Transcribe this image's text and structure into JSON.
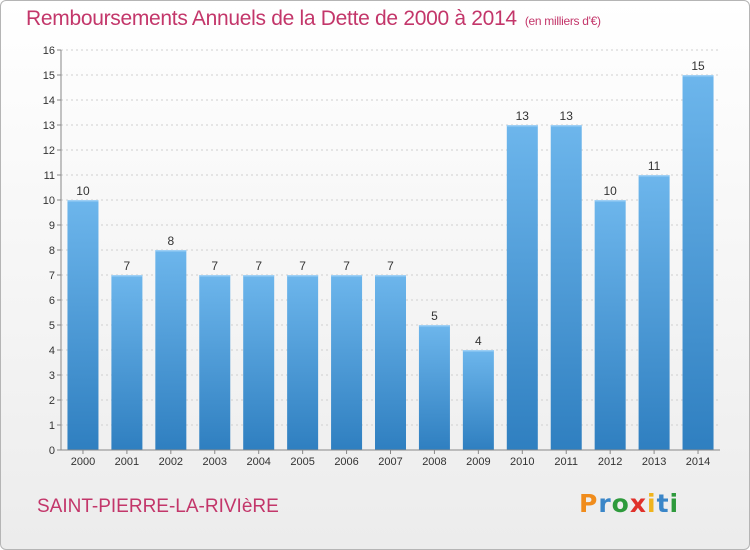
{
  "title": "Remboursements Annuels de la Dette de 2000 à 2014",
  "unit": "(en milliers d'€)",
  "commune": "SAINT-PIERRE-LA-RIVIèRE",
  "logo": {
    "letters": [
      "P",
      "r",
      "o",
      "x",
      "i",
      "t",
      "i"
    ],
    "colors": [
      "#f08c1c",
      "#3a86c8",
      "#2e9a3c",
      "#e0312a",
      "#f0b41c",
      "#3a86c8",
      "#2e9a3c"
    ]
  },
  "colors": {
    "bar_light": "#6db6ec",
    "bar_dark": "#2f7fc0",
    "grid": "#cfcfcf",
    "axis": "#888888",
    "text": "#333333"
  },
  "chart_data": {
    "type": "bar",
    "title": "Remboursements Annuels de la Dette de 2000 à 2014",
    "xlabel": "",
    "ylabel": "",
    "categories": [
      "2000",
      "2001",
      "2002",
      "2003",
      "2004",
      "2005",
      "2006",
      "2007",
      "2008",
      "2009",
      "2010",
      "2011",
      "2012",
      "2013",
      "2014"
    ],
    "values": [
      10,
      7,
      8,
      7,
      7,
      7,
      7,
      7,
      5,
      4,
      13,
      13,
      10,
      11,
      15
    ],
    "ylim": [
      0,
      16
    ],
    "yticks": [
      0,
      1,
      2,
      3,
      4,
      5,
      6,
      7,
      8,
      9,
      10,
      11,
      12,
      13,
      14,
      15,
      16
    ],
    "grid": true
  }
}
